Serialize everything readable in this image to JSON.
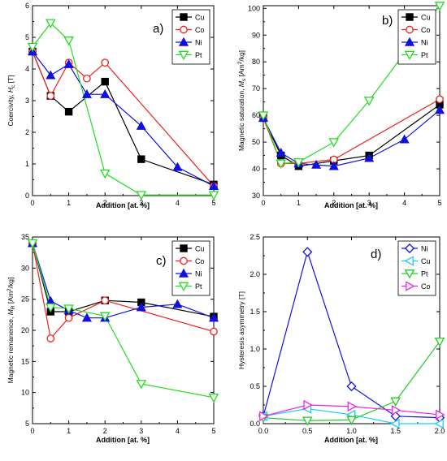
{
  "x_axis_label": "Addition [at. %]",
  "chart_data": [
    {
      "type": "line",
      "panel_label": "a)",
      "title": "",
      "xlabel": "Addition [at. %]",
      "ylabel": "Coercivity, H_c [T]",
      "ylabel_parts": {
        "main": "Coercivity, ",
        "sym": "H",
        "sub": "c",
        "tail": " [T]"
      },
      "xlim": [
        0,
        5
      ],
      "ylim": [
        0,
        6
      ],
      "xticks": [
        "0",
        "1",
        "2",
        "3",
        "4",
        "5"
      ],
      "yticks": [
        "0",
        "1",
        "2",
        "3",
        "4",
        "5",
        "6"
      ],
      "xtick_values": [
        0,
        1,
        2,
        3,
        4,
        5
      ],
      "ytick_values": [
        0,
        1,
        2,
        3,
        4,
        5,
        6
      ],
      "legend_position": "top-right",
      "series": [
        {
          "name": "Cu",
          "color": "#000000",
          "marker": "square-filled",
          "x": [
            0,
            0.5,
            1,
            2,
            3,
            5
          ],
          "y": [
            4.55,
            3.15,
            2.65,
            3.6,
            1.15,
            0.35
          ]
        },
        {
          "name": "Co",
          "color": "#ee2222",
          "marker": "circle-open",
          "x": [
            0,
            0.5,
            1,
            1.5,
            2,
            5
          ],
          "y": [
            4.55,
            3.15,
            4.2,
            3.7,
            4.2,
            0.3
          ]
        },
        {
          "name": "Ni",
          "color": "#1111dd",
          "marker": "triangle-up-filled",
          "x": [
            0,
            0.5,
            1,
            1.5,
            2,
            3,
            4,
            5
          ],
          "y": [
            4.55,
            3.8,
            4.15,
            3.2,
            3.2,
            2.2,
            0.9,
            0.3
          ]
        },
        {
          "name": "Pt",
          "color": "#22dd22",
          "marker": "triangle-down-open",
          "x": [
            0,
            0.5,
            1,
            2,
            3,
            5
          ],
          "y": [
            4.7,
            5.45,
            4.9,
            0.7,
            0.02,
            0.02
          ]
        }
      ]
    },
    {
      "type": "line",
      "panel_label": "b)",
      "title": "",
      "xlabel": "Addition [at. %]",
      "ylabel": "Magnetic saturation, M_s [Am^2/kg]",
      "ylabel_parts": {
        "main": "Magnetic saturation, ",
        "sym": "M",
        "sub": "s",
        "tail": " [Am",
        "sup": "2",
        "tail2": "/kg]"
      },
      "xlim": [
        0,
        5
      ],
      "ylim": [
        30,
        101
      ],
      "xticks": [
        "0",
        "1",
        "2",
        "3",
        "4",
        "5"
      ],
      "yticks": [
        "30",
        "40",
        "50",
        "60",
        "70",
        "80",
        "90",
        "100"
      ],
      "xtick_values": [
        0,
        1,
        2,
        3,
        4,
        5
      ],
      "ytick_values": [
        30,
        40,
        50,
        60,
        70,
        80,
        90,
        100
      ],
      "legend_position": "top-right",
      "series": [
        {
          "name": "Cu",
          "color": "#000000",
          "marker": "square-filled",
          "x": [
            0,
            0.5,
            1,
            2,
            3,
            5
          ],
          "y": [
            59,
            45,
            41,
            43,
            45,
            64
          ]
        },
        {
          "name": "Co",
          "color": "#ee2222",
          "marker": "circle-open",
          "x": [
            0,
            0.5,
            1,
            2,
            5
          ],
          "y": [
            59,
            42,
            42,
            43.5,
            66
          ]
        },
        {
          "name": "Ni",
          "color": "#1111dd",
          "marker": "triangle-up-filled",
          "x": [
            0,
            0.5,
            1,
            1.5,
            2,
            3,
            4,
            5
          ],
          "y": [
            59,
            46,
            42,
            41.5,
            41,
            44,
            51,
            62
          ]
        },
        {
          "name": "Pt",
          "color": "#22dd22",
          "marker": "triangle-down-open",
          "x": [
            0,
            0.5,
            1,
            2,
            3,
            5
          ],
          "y": [
            60,
            42,
            42.5,
            50,
            65.5,
            101
          ]
        }
      ]
    },
    {
      "type": "line",
      "panel_label": "c)",
      "title": "",
      "xlabel": "Addition [at. %]",
      "ylabel": "Magnetic remanence, M_R [Am^2/kg]",
      "ylabel_parts": {
        "main": "Magnetic remanence, ",
        "sym": "M",
        "sub": "R",
        "tail": " [Am",
        "sup": "2",
        "tail2": "/kg]"
      },
      "xlim": [
        0,
        5
      ],
      "ylim": [
        5,
        35
      ],
      "xticks": [
        "0",
        "1",
        "2",
        "3",
        "4",
        "5"
      ],
      "yticks": [
        "5",
        "10",
        "15",
        "20",
        "25",
        "30",
        "35"
      ],
      "xtick_values": [
        0,
        1,
        2,
        3,
        4,
        5
      ],
      "ytick_values": [
        5,
        10,
        15,
        20,
        25,
        30,
        35
      ],
      "legend_position": "top-right",
      "series": [
        {
          "name": "Cu",
          "color": "#000000",
          "marker": "square-filled",
          "x": [
            0,
            0.5,
            1,
            2,
            3,
            5
          ],
          "y": [
            34,
            23,
            23,
            24.8,
            24.5,
            22.2
          ]
        },
        {
          "name": "Co",
          "color": "#ee2222",
          "marker": "circle-open",
          "x": [
            0,
            0.5,
            1,
            2,
            5
          ],
          "y": [
            34,
            18.7,
            22,
            24.8,
            19.8
          ]
        },
        {
          "name": "Ni",
          "color": "#1111dd",
          "marker": "triangle-up-filled",
          "x": [
            0,
            0.5,
            1,
            1.5,
            2,
            3,
            4,
            5
          ],
          "y": [
            34,
            24.7,
            23.2,
            22,
            22,
            23.7,
            24.2,
            22
          ]
        },
        {
          "name": "Pt",
          "color": "#22dd22",
          "marker": "triangle-down-open",
          "x": [
            0,
            0.5,
            1,
            2,
            3,
            5
          ],
          "y": [
            34,
            23.7,
            23.5,
            22.3,
            11.4,
            9.2
          ]
        }
      ]
    },
    {
      "type": "line",
      "panel_label": "d)",
      "title": "",
      "xlabel": "Addition [at. %]",
      "ylabel": "Hysteresis asymmetry [T]",
      "xlim": [
        0,
        2
      ],
      "ylim": [
        0,
        2.5
      ],
      "xticks": [
        "0.0",
        "0.5",
        "1.0",
        "1.5",
        "2.0"
      ],
      "yticks": [
        "0.0",
        "0.5",
        "1.0",
        "1.5",
        "2.0",
        "2.5"
      ],
      "xtick_values": [
        0,
        0.5,
        1,
        1.5,
        2
      ],
      "ytick_values": [
        0,
        0.5,
        1,
        1.5,
        2,
        2.5
      ],
      "legend_position": "top-right",
      "series": [
        {
          "name": "Ni",
          "color": "#1111dd",
          "marker": "diamond-open",
          "x": [
            0,
            0.5,
            1,
            1.5,
            2
          ],
          "y": [
            0.1,
            2.3,
            0.5,
            0.1,
            0.08
          ]
        },
        {
          "name": "Cu",
          "color": "#22ccee",
          "marker": "triangle-left-open",
          "x": [
            0,
            0.5,
            1,
            1.5,
            2
          ],
          "y": [
            0.1,
            0.2,
            0.12,
            0.0,
            0.0
          ]
        },
        {
          "name": "Pt",
          "color": "#22cc22",
          "marker": "triangle-down-open",
          "x": [
            0,
            0.5,
            1,
            1.5,
            2
          ],
          "y": [
            0.08,
            0.04,
            0.05,
            0.3,
            1.1
          ]
        },
        {
          "name": "Co",
          "color": "#ee22ee",
          "marker": "triangle-right-open",
          "x": [
            0,
            0.5,
            1,
            1.5,
            2
          ],
          "y": [
            0.1,
            0.25,
            0.23,
            0.18,
            0.12
          ]
        }
      ]
    }
  ]
}
